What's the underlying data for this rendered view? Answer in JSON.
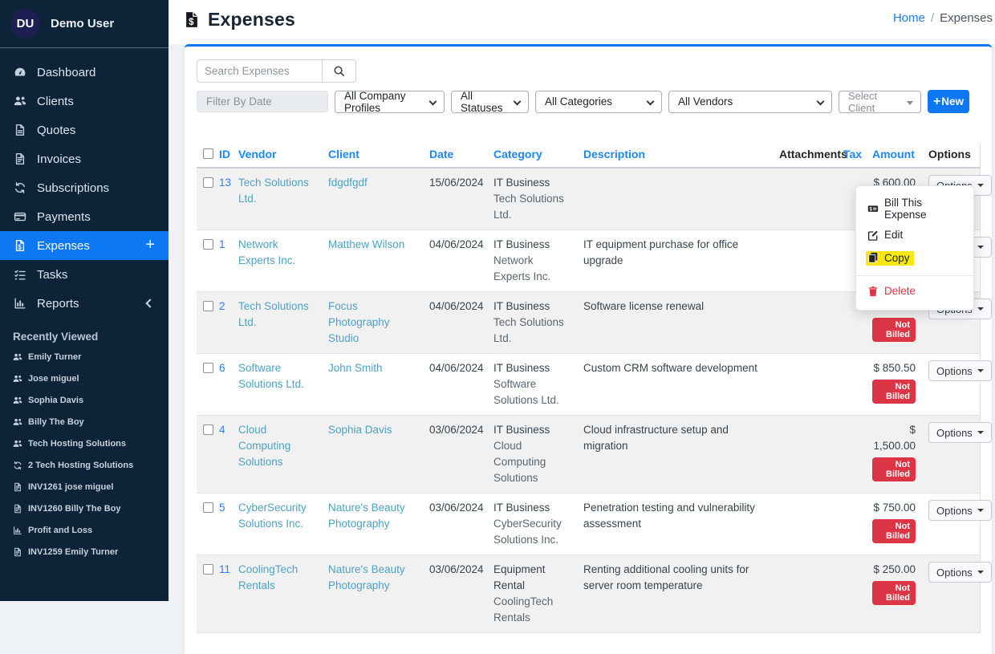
{
  "colors": {
    "accent_blue": "#0d78f2",
    "sidebar_bg": "#0d2337",
    "danger_red": "#dc3545",
    "vendor_link_teal": "#4da3c2",
    "id_link_blue": "#2e7ef0",
    "highlight_yellow": "#f9e612"
  },
  "sidebar": {
    "user": {
      "initials": "DU",
      "name": "Demo User"
    },
    "nav": [
      {
        "label": "Dashboard",
        "icon": "dashboard-icon",
        "active": false
      },
      {
        "label": "Clients",
        "icon": "clients-icon",
        "active": false
      },
      {
        "label": "Quotes",
        "icon": "quotes-icon",
        "active": false
      },
      {
        "label": "Invoices",
        "icon": "invoices-icon",
        "active": false
      },
      {
        "label": "Subscriptions",
        "icon": "subscriptions-icon",
        "active": false
      },
      {
        "label": "Payments",
        "icon": "payments-icon",
        "active": false
      },
      {
        "label": "Expenses",
        "icon": "expenses-icon",
        "active": true,
        "suffix": "plus"
      },
      {
        "label": "Tasks",
        "icon": "tasks-icon",
        "active": false
      },
      {
        "label": "Reports",
        "icon": "reports-icon",
        "active": false,
        "suffix": "chevron-left"
      }
    ],
    "recently_viewed_title": "Recently Viewed",
    "recently_viewed": [
      {
        "label": "Emily Turner",
        "type": "client"
      },
      {
        "label": "Jose miguel",
        "type": "client"
      },
      {
        "label": "Sophia Davis",
        "type": "client"
      },
      {
        "label": "Billy The Boy",
        "type": "client"
      },
      {
        "label": "Tech Hosting Solutions",
        "type": "client"
      },
      {
        "label": "2 Tech Hosting Solutions",
        "type": "subscription"
      },
      {
        "label": "INV1261 jose miguel",
        "type": "invoice"
      },
      {
        "label": "INV1260 Billy The Boy",
        "type": "invoice"
      },
      {
        "label": "Profit and Loss",
        "type": "report"
      },
      {
        "label": "INV1259 Emily Turner",
        "type": "invoice"
      }
    ]
  },
  "header": {
    "title": "Expenses",
    "breadcrumb_home": "Home",
    "breadcrumb_sep": "/",
    "breadcrumb_current": "Expenses"
  },
  "filters": {
    "search_placeholder": "Search Expenses",
    "date_placeholder": "Filter By Date",
    "company_profiles": "All Company Profiles",
    "statuses": "All Statuses",
    "categories": "All Categories",
    "vendors": "All Vendors",
    "client_placeholder": "Select Client",
    "new_label": "New"
  },
  "table": {
    "columns": [
      {
        "label": "ID",
        "sortable": true
      },
      {
        "label": "Vendor",
        "sortable": true
      },
      {
        "label": "Client",
        "sortable": true
      },
      {
        "label": "Date",
        "sortable": true
      },
      {
        "label": "Category",
        "sortable": true
      },
      {
        "label": "Description",
        "sortable": true
      },
      {
        "label": "Attachments",
        "sortable": false
      },
      {
        "label": "Tax",
        "sortable": true
      },
      {
        "label": "Amount",
        "sortable": true
      },
      {
        "label": "Options",
        "sortable": false
      }
    ],
    "options_label": "Options",
    "not_billed_label": "Not Billed",
    "rows": [
      {
        "id": "13",
        "vendor": "Tech Solutions Ltd.",
        "client": "fdgdfgdf",
        "date": "15/06/2024",
        "category": "IT Business",
        "category_sub": "Tech Solutions Ltd.",
        "description": "",
        "attachments": "",
        "tax": "",
        "amount": "$ 600.00",
        "not_billed": true
      },
      {
        "id": "1",
        "vendor": "Network Experts Inc.",
        "client": "Matthew Wilson",
        "date": "04/06/2024",
        "category": "IT Business",
        "category_sub": "Network Experts Inc.",
        "description": "IT equipment purchase for office upgrade",
        "attachments": "",
        "tax": "",
        "amount": "",
        "not_billed": false
      },
      {
        "id": "2",
        "vendor": "Tech Solutions Ltd.",
        "client": "Focus Photography Studio",
        "date": "04/06/2024",
        "category": "IT Business",
        "category_sub": "Tech Solutions Ltd.",
        "description": "Software license renewal",
        "attachments": "",
        "tax": "",
        "amount": "",
        "not_billed": true
      },
      {
        "id": "6",
        "vendor": "Software Solutions Ltd.",
        "client": "John Smith",
        "date": "04/06/2024",
        "category": "IT Business",
        "category_sub": "Software Solutions Ltd.",
        "description": "Custom CRM software development",
        "attachments": "",
        "tax": "",
        "amount": "$ 850.50",
        "not_billed": true
      },
      {
        "id": "4",
        "vendor": "Cloud Computing Solutions",
        "client": "Sophia Davis",
        "date": "03/06/2024",
        "category": "IT Business",
        "category_sub": "Cloud Computing Solutions",
        "description": "Cloud infrastructure setup and migration",
        "attachments": "",
        "tax": "",
        "amount": "$ 1,500.00",
        "not_billed": true
      },
      {
        "id": "5",
        "vendor": "CyberSecurity Solutions Inc.",
        "client": "Nature's Beauty Photography",
        "date": "03/06/2024",
        "category": "IT Business",
        "category_sub": "CyberSecurity Solutions Inc.",
        "description": "Penetration testing and vulnerability assessment",
        "attachments": "",
        "tax": "",
        "amount": "$ 750.00",
        "not_billed": true
      },
      {
        "id": "11",
        "vendor": "CoolingTech Rentals",
        "client": "Nature's Beauty Photography",
        "date": "03/06/2024",
        "category": "Equipment Rental",
        "category_sub": "CoolingTech Rentals",
        "description": "Renting additional cooling units for server room temperature",
        "attachments": "",
        "tax": "",
        "amount": "$ 250.00",
        "not_billed": true
      }
    ]
  },
  "options_menu": {
    "items": [
      {
        "label": "Bill This Expense",
        "icon": "bill-icon",
        "style": "normal",
        "divider_before": false
      },
      {
        "label": "Edit",
        "icon": "edit-icon",
        "style": "normal",
        "divider_before": false
      },
      {
        "label": "Copy",
        "icon": "copy-icon",
        "style": "highlighted",
        "divider_before": false
      },
      {
        "label": "Delete",
        "icon": "trash-icon",
        "style": "danger",
        "divider_before": true
      }
    ]
  }
}
